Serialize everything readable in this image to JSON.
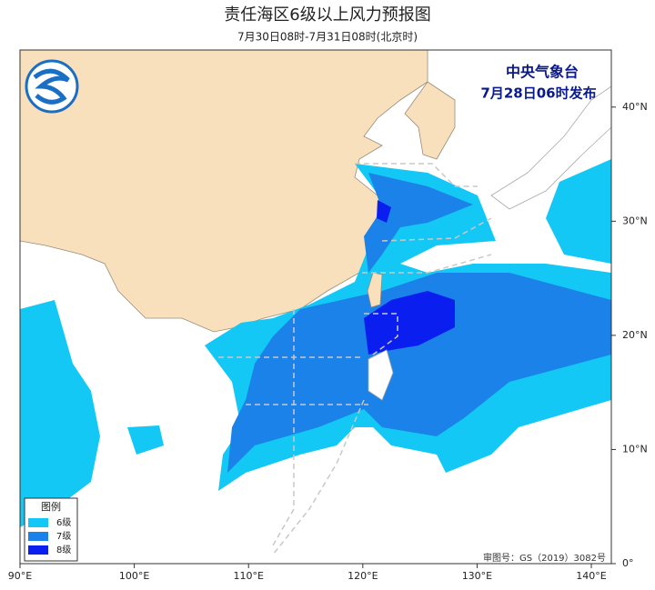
{
  "header": {
    "title": "责任海区6级以上风力预报图",
    "subtitle": "7月30日08时-7月31日08时(北京时)"
  },
  "issuer": {
    "agency": "中央气象台",
    "issued": "7月28日06时发布"
  },
  "legend": {
    "title": "图例",
    "items": [
      {
        "label": "6级",
        "color": "#14c8f5"
      },
      {
        "label": "7级",
        "color": "#1a82e8"
      },
      {
        "label": "8级",
        "color": "#0a1ef0"
      }
    ]
  },
  "map": {
    "lonlim": [
      90,
      141.75
    ],
    "latlim": [
      0,
      45
    ],
    "lon_ticks": [
      {
        "value": 90,
        "label": "90°E"
      },
      {
        "value": 100,
        "label": "100°E"
      },
      {
        "value": 110,
        "label": "110°E"
      },
      {
        "value": 120,
        "label": "120°E"
      },
      {
        "value": 130,
        "label": "130°E"
      },
      {
        "value": 140,
        "label": "140°E"
      }
    ],
    "lat_ticks": [
      {
        "value": 0,
        "label": "0°"
      },
      {
        "value": 10,
        "label": "10°N"
      },
      {
        "value": 20,
        "label": "20°N"
      },
      {
        "value": 30,
        "label": "30°N"
      },
      {
        "value": 40,
        "label": "40°N"
      }
    ]
  },
  "footer": {
    "approval": "审图号：GS（2019）3082号"
  }
}
